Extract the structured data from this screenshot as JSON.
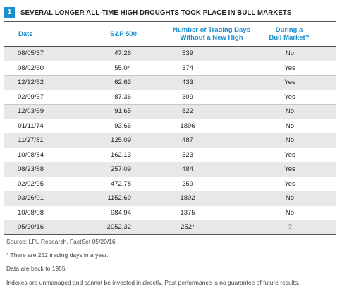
{
  "header": {
    "badge": "1",
    "title": "SEVERAL LONGER ALL-TIME HIGH DROUGHTS TOOK PLACE IN BULL MARKETS"
  },
  "columns": {
    "date": "Date",
    "sp500": "S&P 500",
    "days_line1": "Number of Trading Days",
    "days_line2": "Without a New High",
    "bull_line1": "During a",
    "bull_line2": "Bull Market?"
  },
  "rows": [
    {
      "date": "08/05/57",
      "sp500": "47.26",
      "days": "539",
      "bull": "No"
    },
    {
      "date": "08/02/60",
      "sp500": "55.04",
      "days": "374",
      "bull": "Yes"
    },
    {
      "date": "12/12/62",
      "sp500": "62.63",
      "days": "433",
      "bull": "Yes"
    },
    {
      "date": "02/09/67",
      "sp500": "87.36",
      "days": "309",
      "bull": "Yes"
    },
    {
      "date": "12/03/69",
      "sp500": "91.65",
      "days": "822",
      "bull": "No"
    },
    {
      "date": "01/11/74",
      "sp500": "93.66",
      "days": "1896",
      "bull": "No"
    },
    {
      "date": "11/27/81",
      "sp500": "125.09",
      "days": "487",
      "bull": "No"
    },
    {
      "date": "10/08/84",
      "sp500": "162.13",
      "days": "323",
      "bull": "Yes"
    },
    {
      "date": "08/23/88",
      "sp500": "257.09",
      "days": "484",
      "bull": "Yes"
    },
    {
      "date": "02/02/95",
      "sp500": "472.78",
      "days": "259",
      "bull": "Yes"
    },
    {
      "date": "03/26/01",
      "sp500": "1152.69",
      "days": "1802",
      "bull": "No"
    },
    {
      "date": "10/08/08",
      "sp500": "984.94",
      "days": "1375",
      "bull": "No"
    },
    {
      "date": "05/20/16",
      "sp500": "2052.32",
      "days": "252*",
      "bull": "?"
    }
  ],
  "notes": {
    "source": "Source: LPL Research, FactSet 05/20/16",
    "footnote": "* There are 252 trading days in a year.",
    "data_range": "Data are back to 1955.",
    "disclaimer": "Indexes are unmanaged and cannot be invested in directly. Past performance is no guarantee of future results."
  },
  "colors": {
    "accent": "#1a8fd0",
    "stripe": "#e7e8e9"
  }
}
